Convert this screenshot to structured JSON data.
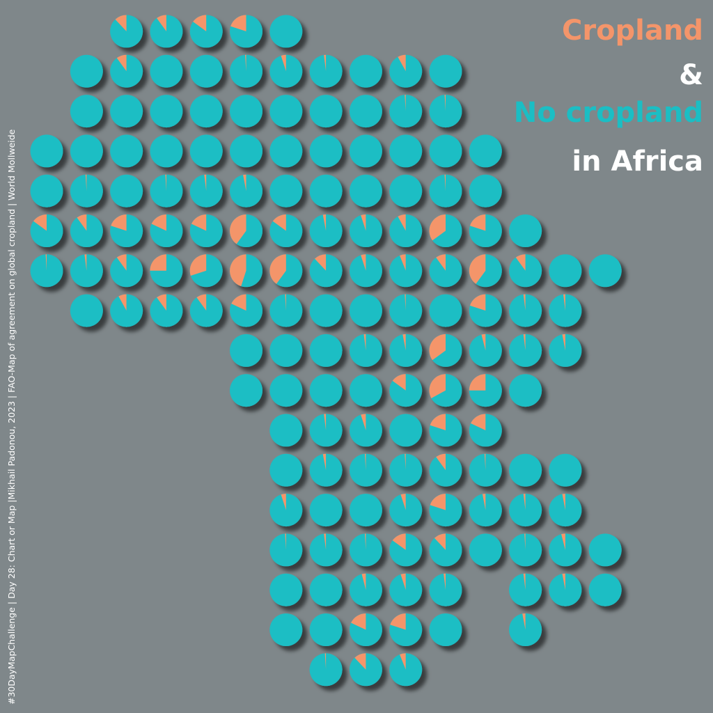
{
  "title": {
    "line1": "Cropland",
    "line2": "&",
    "line3": "No cropland",
    "line4": "in Africa"
  },
  "credit": "#30DayMapChallenge  |  Day 28: Chart or Map  |Mikhail Padonou, 2023  |  FAO-Map of agreement on global cropland  |  World Mollweide",
  "colors": {
    "background": "#7f878a",
    "cropland": "#f4956a",
    "no_cropland": "#1bbec4",
    "title_white": "#ffffff"
  },
  "chart_data": {
    "type": "pie-grid",
    "series": [
      {
        "name": "Cropland",
        "color": "#f4956a"
      },
      {
        "name": "No cropland",
        "color": "#1bbec4"
      }
    ],
    "grid": [
      [
        null,
        null,
        0.12,
        0.1,
        0.15,
        0.2,
        0.0,
        null,
        null,
        null,
        null,
        null,
        null,
        null,
        null,
        null
      ],
      [
        null,
        0.0,
        0.1,
        0.0,
        0.0,
        0.01,
        0.05,
        0.02,
        0.0,
        0.08,
        0.0,
        null,
        null,
        null,
        null,
        null
      ],
      [
        null,
        0.0,
        0.0,
        0.0,
        0.0,
        0.0,
        0.0,
        0.0,
        0.0,
        0.01,
        0.01,
        null,
        null,
        null,
        null,
        null
      ],
      [
        0.0,
        0.0,
        0.0,
        0.0,
        0.0,
        0.0,
        0.0,
        0.0,
        0.0,
        0.0,
        0.0,
        0.0,
        null,
        null,
        null,
        null
      ],
      [
        0.0,
        0.01,
        0.0,
        0.01,
        0.02,
        0.03,
        0.0,
        0.0,
        0.0,
        0.0,
        0.01,
        0.0,
        null,
        null,
        null,
        null
      ],
      [
        0.15,
        0.1,
        0.2,
        0.18,
        0.18,
        0.4,
        0.15,
        0.03,
        0.05,
        0.08,
        0.35,
        0.2,
        0.0,
        null,
        null,
        null
      ],
      [
        0.01,
        0.02,
        0.1,
        0.25,
        0.3,
        0.45,
        0.4,
        0.12,
        0.05,
        0.06,
        0.1,
        0.4,
        0.1,
        0.0,
        0.0,
        null
      ],
      [
        null,
        0.0,
        0.08,
        0.1,
        0.1,
        0.18,
        0.01,
        0.0,
        0.0,
        0.01,
        0.0,
        0.2,
        0.02,
        0.02,
        null,
        null
      ],
      [
        null,
        null,
        null,
        null,
        null,
        0.0,
        0.0,
        0.0,
        0.02,
        0.03,
        0.35,
        0.04,
        0.02,
        0.03,
        null,
        null
      ],
      [
        null,
        null,
        null,
        null,
        null,
        0.0,
        0.0,
        0.0,
        0.0,
        0.15,
        0.33,
        0.25,
        0.0,
        null,
        null,
        null
      ],
      [
        null,
        null,
        null,
        null,
        null,
        null,
        0.0,
        0.02,
        0.05,
        0.0,
        0.2,
        0.18,
        null,
        null,
        null,
        null
      ],
      [
        null,
        null,
        null,
        null,
        null,
        null,
        0.0,
        0.03,
        0.01,
        0.01,
        0.1,
        0.01,
        0.0,
        0.0,
        null,
        null
      ],
      [
        null,
        null,
        null,
        null,
        null,
        null,
        0.05,
        0.0,
        0.0,
        0.05,
        0.2,
        0.03,
        0.02,
        0.03,
        null,
        null
      ],
      [
        null,
        null,
        null,
        null,
        null,
        null,
        0.01,
        0.02,
        0.01,
        0.15,
        0.12,
        0.0,
        0.01,
        0.04,
        0.0,
        null
      ],
      [
        null,
        null,
        null,
        null,
        null,
        null,
        0.0,
        0.0,
        0.04,
        0.05,
        0.02,
        null,
        0.02,
        0.03,
        0.0,
        null
      ],
      [
        null,
        null,
        null,
        null,
        null,
        null,
        0.0,
        0.0,
        0.18,
        0.2,
        0.0,
        null,
        0.03,
        null,
        null,
        null
      ],
      [
        null,
        null,
        null,
        null,
        null,
        null,
        null,
        0.01,
        0.12,
        0.06,
        null,
        null,
        null,
        null,
        null,
        null
      ]
    ]
  }
}
